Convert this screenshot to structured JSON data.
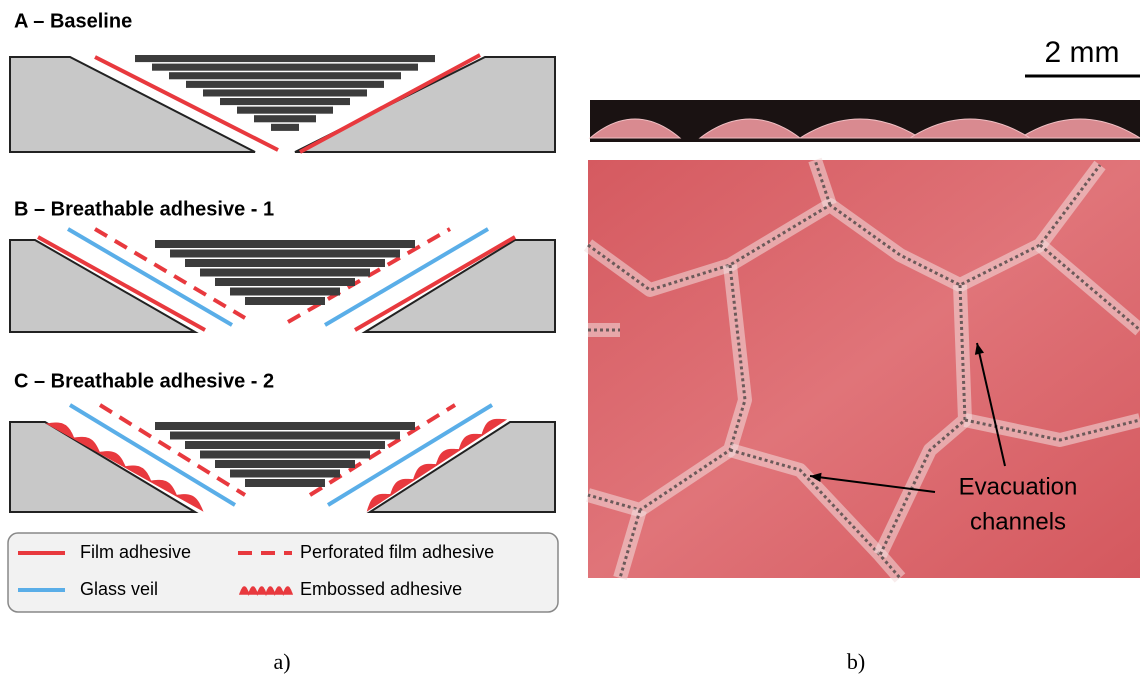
{
  "panel_a": {
    "rows": [
      {
        "title": "A – Baseline"
      },
      {
        "title": "B – Breathable adhesive - 1"
      },
      {
        "title": "C – Breathable adhesive - 2"
      }
    ],
    "legend": [
      "Film adhesive",
      "Perforated film adhesive",
      "Glass veil",
      "Embossed adhesive"
    ],
    "label": "a)"
  },
  "panel_b": {
    "scale_bar": "2 mm",
    "annotation_lines": [
      "Evacuation",
      "channels"
    ],
    "label": "b)"
  }
}
